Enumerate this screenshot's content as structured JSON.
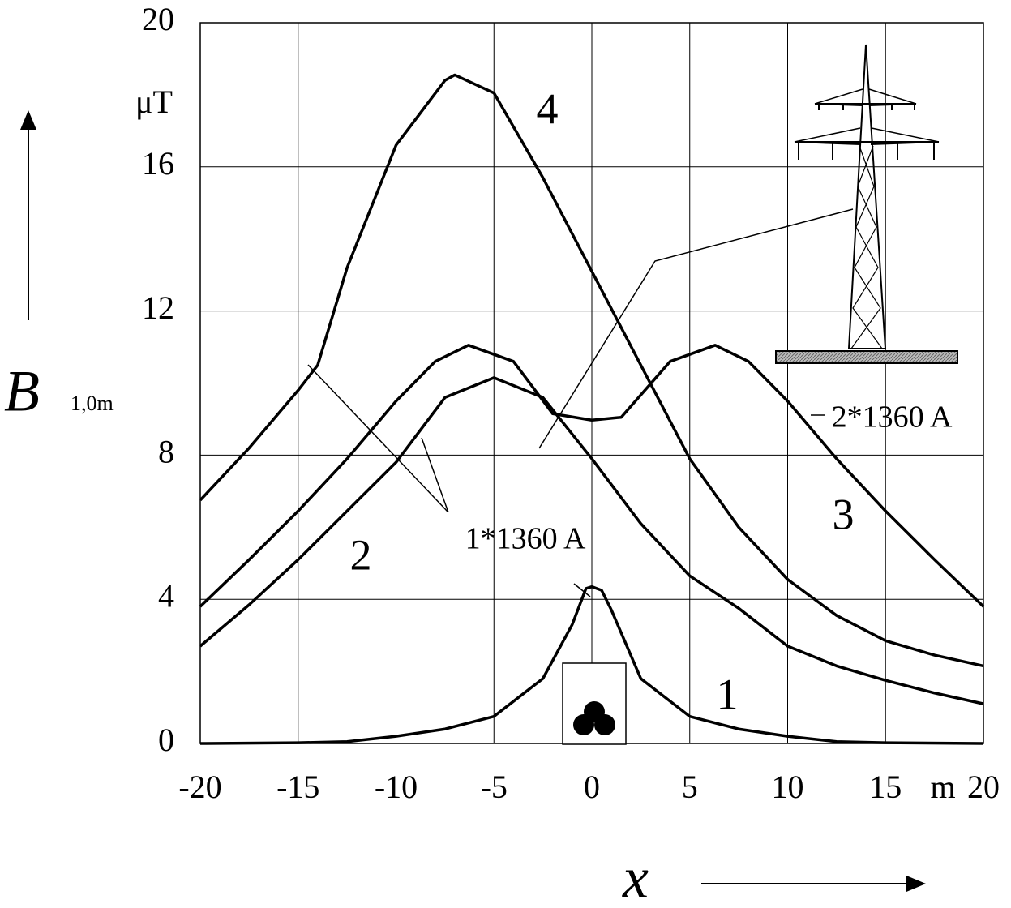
{
  "chart_data": {
    "type": "line",
    "y_label": "B",
    "y_label_subscript": "1,0m",
    "x_label": "x",
    "x_unit": "m",
    "y_unit": "μT",
    "xlim": [
      -20,
      20
    ],
    "xticks": [
      -20,
      -15,
      -10,
      -5,
      0,
      5,
      10,
      15,
      20
    ],
    "ylim": [
      0,
      20
    ],
    "yticks": [
      0,
      4,
      8,
      12,
      16,
      20
    ],
    "grid": true,
    "color": "#000000",
    "series": [
      {
        "name": "1",
        "x": [
          -20,
          -15,
          -12.5,
          -10,
          -7.5,
          -5,
          -2.5,
          -1,
          -0.3,
          0,
          0.5,
          1,
          2.5,
          5,
          7.5,
          10,
          12.5,
          15,
          20
        ],
        "values": [
          0,
          0.02,
          0.05,
          0.2,
          0.4,
          0.75,
          1.8,
          3.3,
          4.3,
          4.35,
          4.25,
          3.7,
          1.8,
          0.75,
          0.4,
          0.2,
          0.05,
          0.02,
          0
        ]
      },
      {
        "name": "2",
        "x": [
          -20,
          -17.5,
          -15,
          -12.5,
          -10,
          -7.5,
          -5,
          -2.5,
          0,
          2.5,
          5,
          7.5,
          10,
          12.5,
          15,
          17.5,
          20
        ],
        "values": [
          2.7,
          3.85,
          5.1,
          6.45,
          7.8,
          9.6,
          10.15,
          9.6,
          7.9,
          6.1,
          4.65,
          3.75,
          2.7,
          2.15,
          1.75,
          1.4,
          1.1
        ]
      },
      {
        "name": "3",
        "x": [
          -20,
          -17.5,
          -15,
          -12.5,
          -10,
          -8,
          -6.3,
          -4,
          -2,
          0,
          1.5,
          4,
          6.3,
          8,
          10,
          12.5,
          15,
          17.5,
          20
        ],
        "values": [
          3.8,
          5.1,
          6.45,
          7.9,
          9.5,
          10.6,
          11.05,
          10.6,
          9.15,
          8.97,
          9.05,
          10.6,
          11.05,
          10.6,
          9.5,
          7.9,
          6.45,
          5.1,
          3.8
        ]
      },
      {
        "name": "4",
        "x": [
          -20,
          -17.5,
          -15,
          -14,
          -12.5,
          -10,
          -7.5,
          -7,
          -5,
          -2.5,
          0,
          2.5,
          5,
          7.5,
          10,
          12.5,
          15,
          17.5,
          20
        ],
        "values": [
          6.75,
          8.2,
          9.8,
          10.5,
          13.2,
          16.6,
          18.4,
          18.55,
          18.05,
          15.7,
          13.1,
          10.5,
          7.9,
          6.0,
          4.55,
          3.55,
          2.85,
          2.45,
          2.15
        ]
      }
    ],
    "annotations": [
      "1*1360 A",
      "2*1360 A"
    ]
  }
}
